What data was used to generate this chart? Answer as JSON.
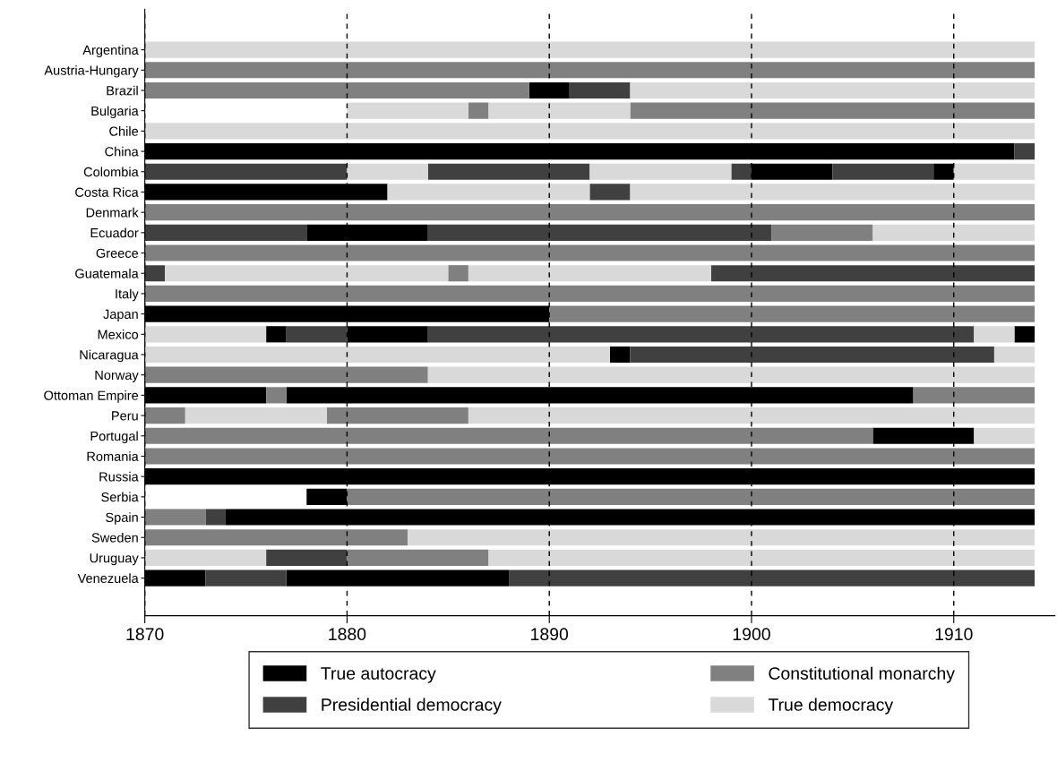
{
  "chart_data": {
    "type": "bar",
    "orientation": "horizontal",
    "categories": [
      "Argentina",
      "Austria-Hungary",
      "Brazil",
      "Bulgaria",
      "Chile",
      "China",
      "Colombia",
      "Costa Rica",
      "Denmark",
      "Ecuador",
      "Greece",
      "Guatemala",
      "Italy",
      "Japan",
      "Mexico",
      "Nicaragua",
      "Norway",
      "Ottoman Empire",
      "Peru",
      "Portugal",
      "Romania",
      "Russia",
      "Serbia",
      "Spain",
      "Sweden",
      "Uruguay",
      "Venezuela"
    ],
    "xlim": [
      1870,
      1915
    ],
    "xticks": [
      1870,
      1880,
      1890,
      1900,
      1910
    ],
    "grid": "x",
    "legend": "bottom",
    "series": [
      {
        "name": "True autocracy",
        "color": "#000000",
        "values": [
          null,
          null,
          2,
          null,
          null,
          43,
          4,
          12,
          null,
          6,
          null,
          null,
          null,
          20,
          1,
          1,
          null,
          6,
          null,
          5,
          null,
          44,
          2,
          40,
          null,
          null,
          3
        ],
        "base": [
          null,
          null,
          1889,
          null,
          null,
          1870,
          1900,
          1870,
          null,
          1878,
          null,
          null,
          null,
          1870,
          1876,
          1893,
          null,
          1870,
          null,
          1906,
          null,
          1870,
          1878,
          1874,
          null,
          null,
          1870
        ]
      },
      {
        "color": "#000000",
        "values": [
          null,
          null,
          null,
          null,
          null,
          null,
          1,
          null,
          null,
          null,
          null,
          null,
          null,
          null,
          4,
          null,
          null,
          31,
          null,
          null,
          null,
          null,
          null,
          null,
          null,
          null,
          11
        ],
        "base": [
          null,
          null,
          null,
          null,
          null,
          null,
          1909,
          null,
          null,
          null,
          null,
          null,
          null,
          null,
          1880,
          null,
          null,
          1877,
          null,
          null,
          null,
          null,
          null,
          null,
          null,
          null,
          1877
        ]
      },
      {
        "color": "#000000",
        "values": [
          null,
          null,
          null,
          null,
          null,
          null,
          null,
          null,
          null,
          null,
          null,
          null,
          null,
          null,
          1,
          null,
          null,
          null,
          null,
          null,
          null,
          null,
          null,
          null,
          null,
          null,
          null
        ],
        "base": [
          null,
          null,
          null,
          null,
          null,
          null,
          null,
          null,
          null,
          null,
          null,
          null,
          null,
          null,
          1913,
          null,
          null,
          null,
          null,
          null,
          null,
          null,
          null,
          null,
          null,
          null,
          null
        ]
      },
      {
        "name": "Presidential democracy",
        "color": "#404040",
        "values": [
          null,
          null,
          3,
          null,
          null,
          1,
          10,
          2,
          null,
          8,
          null,
          1,
          null,
          null,
          3,
          18,
          null,
          null,
          null,
          null,
          null,
          null,
          null,
          1,
          null,
          4,
          4
        ],
        "base": [
          null,
          null,
          1891,
          null,
          null,
          1913,
          1870,
          1892,
          null,
          1870,
          null,
          1870,
          null,
          null,
          1877,
          1894,
          null,
          null,
          null,
          null,
          null,
          null,
          null,
          1873,
          null,
          1876,
          1873
        ]
      },
      {
        "color": "#404040",
        "values": [
          null,
          null,
          null,
          null,
          null,
          null,
          8,
          null,
          null,
          17,
          null,
          16,
          null,
          null,
          27,
          null,
          null,
          null,
          null,
          null,
          null,
          null,
          null,
          null,
          null,
          null,
          26
        ],
        "base": [
          null,
          null,
          null,
          null,
          null,
          null,
          1884,
          null,
          null,
          1884,
          null,
          1898,
          null,
          null,
          1884,
          null,
          null,
          null,
          null,
          null,
          null,
          null,
          null,
          null,
          null,
          null,
          1888
        ]
      },
      {
        "color": "#404040",
        "values": [
          null,
          null,
          null,
          null,
          null,
          null,
          1,
          null,
          null,
          null,
          null,
          null,
          null,
          null,
          null,
          null,
          null,
          null,
          null,
          null,
          null,
          null,
          null,
          null,
          null,
          null,
          null
        ],
        "base": [
          null,
          null,
          null,
          null,
          null,
          null,
          1899,
          null,
          null,
          null,
          null,
          null,
          null,
          null,
          null,
          null,
          null,
          null,
          null,
          null,
          null,
          null,
          null,
          null,
          null,
          null,
          null
        ]
      },
      {
        "color": "#404040",
        "values": [
          null,
          null,
          null,
          null,
          null,
          null,
          5,
          null,
          null,
          null,
          null,
          null,
          null,
          null,
          null,
          null,
          null,
          null,
          null,
          null,
          null,
          null,
          null,
          null,
          null,
          null,
          null
        ],
        "base": [
          null,
          null,
          null,
          null,
          null,
          null,
          1904,
          null,
          null,
          null,
          null,
          null,
          null,
          null,
          null,
          null,
          null,
          null,
          null,
          null,
          null,
          null,
          null,
          null,
          null,
          null,
          null
        ]
      },
      {
        "name": "Constitutional monarchy",
        "color": "#808080",
        "values": [
          null,
          44,
          19,
          1,
          null,
          null,
          null,
          null,
          44,
          5,
          44,
          1,
          44,
          24,
          null,
          null,
          14,
          1,
          2,
          36,
          44,
          null,
          34,
          3,
          13,
          7,
          null
        ],
        "base": [
          null,
          1870,
          1870,
          1886,
          null,
          null,
          null,
          null,
          1870,
          1901,
          1870,
          1885,
          1870,
          1890,
          null,
          null,
          1870,
          1876,
          1870,
          1870,
          1870,
          null,
          1880,
          1870,
          1870,
          1880,
          null
        ]
      },
      {
        "color": "#808080",
        "values": [
          null,
          null,
          null,
          20,
          null,
          null,
          null,
          null,
          null,
          null,
          null,
          null,
          null,
          null,
          null,
          null,
          null,
          6,
          7,
          null,
          null,
          null,
          null,
          null,
          null,
          null,
          null
        ],
        "base": [
          null,
          null,
          null,
          1894,
          null,
          null,
          null,
          null,
          null,
          null,
          null,
          null,
          null,
          null,
          null,
          null,
          null,
          1908,
          1879,
          null,
          null,
          null,
          null,
          null,
          null,
          null,
          null
        ]
      },
      {
        "name": "True democracy",
        "color": "#d9d9d9",
        "values": [
          44,
          null,
          20,
          6,
          44,
          null,
          4,
          10,
          null,
          8,
          null,
          14,
          null,
          null,
          6,
          23,
          30,
          null,
          7,
          3,
          null,
          null,
          null,
          null,
          31,
          6,
          null
        ],
        "base": [
          1870,
          null,
          1894,
          1880,
          1870,
          null,
          1880,
          1882,
          null,
          1906,
          null,
          1871,
          null,
          null,
          1870,
          1870,
          1884,
          null,
          1872,
          1911,
          null,
          null,
          null,
          null,
          1883,
          1870,
          null
        ]
      },
      {
        "color": "#d9d9d9",
        "values": [
          null,
          null,
          null,
          7,
          null,
          null,
          7,
          20,
          null,
          null,
          null,
          12,
          null,
          null,
          2,
          2,
          null,
          null,
          28,
          null,
          null,
          null,
          null,
          null,
          null,
          27,
          null
        ],
        "base": [
          null,
          null,
          null,
          1887,
          null,
          null,
          1892,
          1894,
          null,
          null,
          null,
          1886,
          null,
          null,
          1911,
          1912,
          null,
          null,
          1886,
          null,
          null,
          null,
          null,
          null,
          null,
          1887,
          null
        ]
      },
      {
        "color": "#d9d9d9",
        "values": [
          null,
          null,
          null,
          null,
          null,
          null,
          4,
          null,
          null,
          null,
          null,
          null,
          null,
          null,
          null,
          null,
          null,
          null,
          null,
          null,
          null,
          null,
          null,
          null,
          null,
          null,
          null
        ],
        "base": [
          null,
          null,
          null,
          null,
          null,
          null,
          1910,
          null,
          null,
          null,
          null,
          null,
          null,
          null,
          null,
          null,
          null,
          null,
          null,
          null,
          null,
          null,
          null,
          null,
          null,
          null,
          null
        ]
      }
    ]
  }
}
